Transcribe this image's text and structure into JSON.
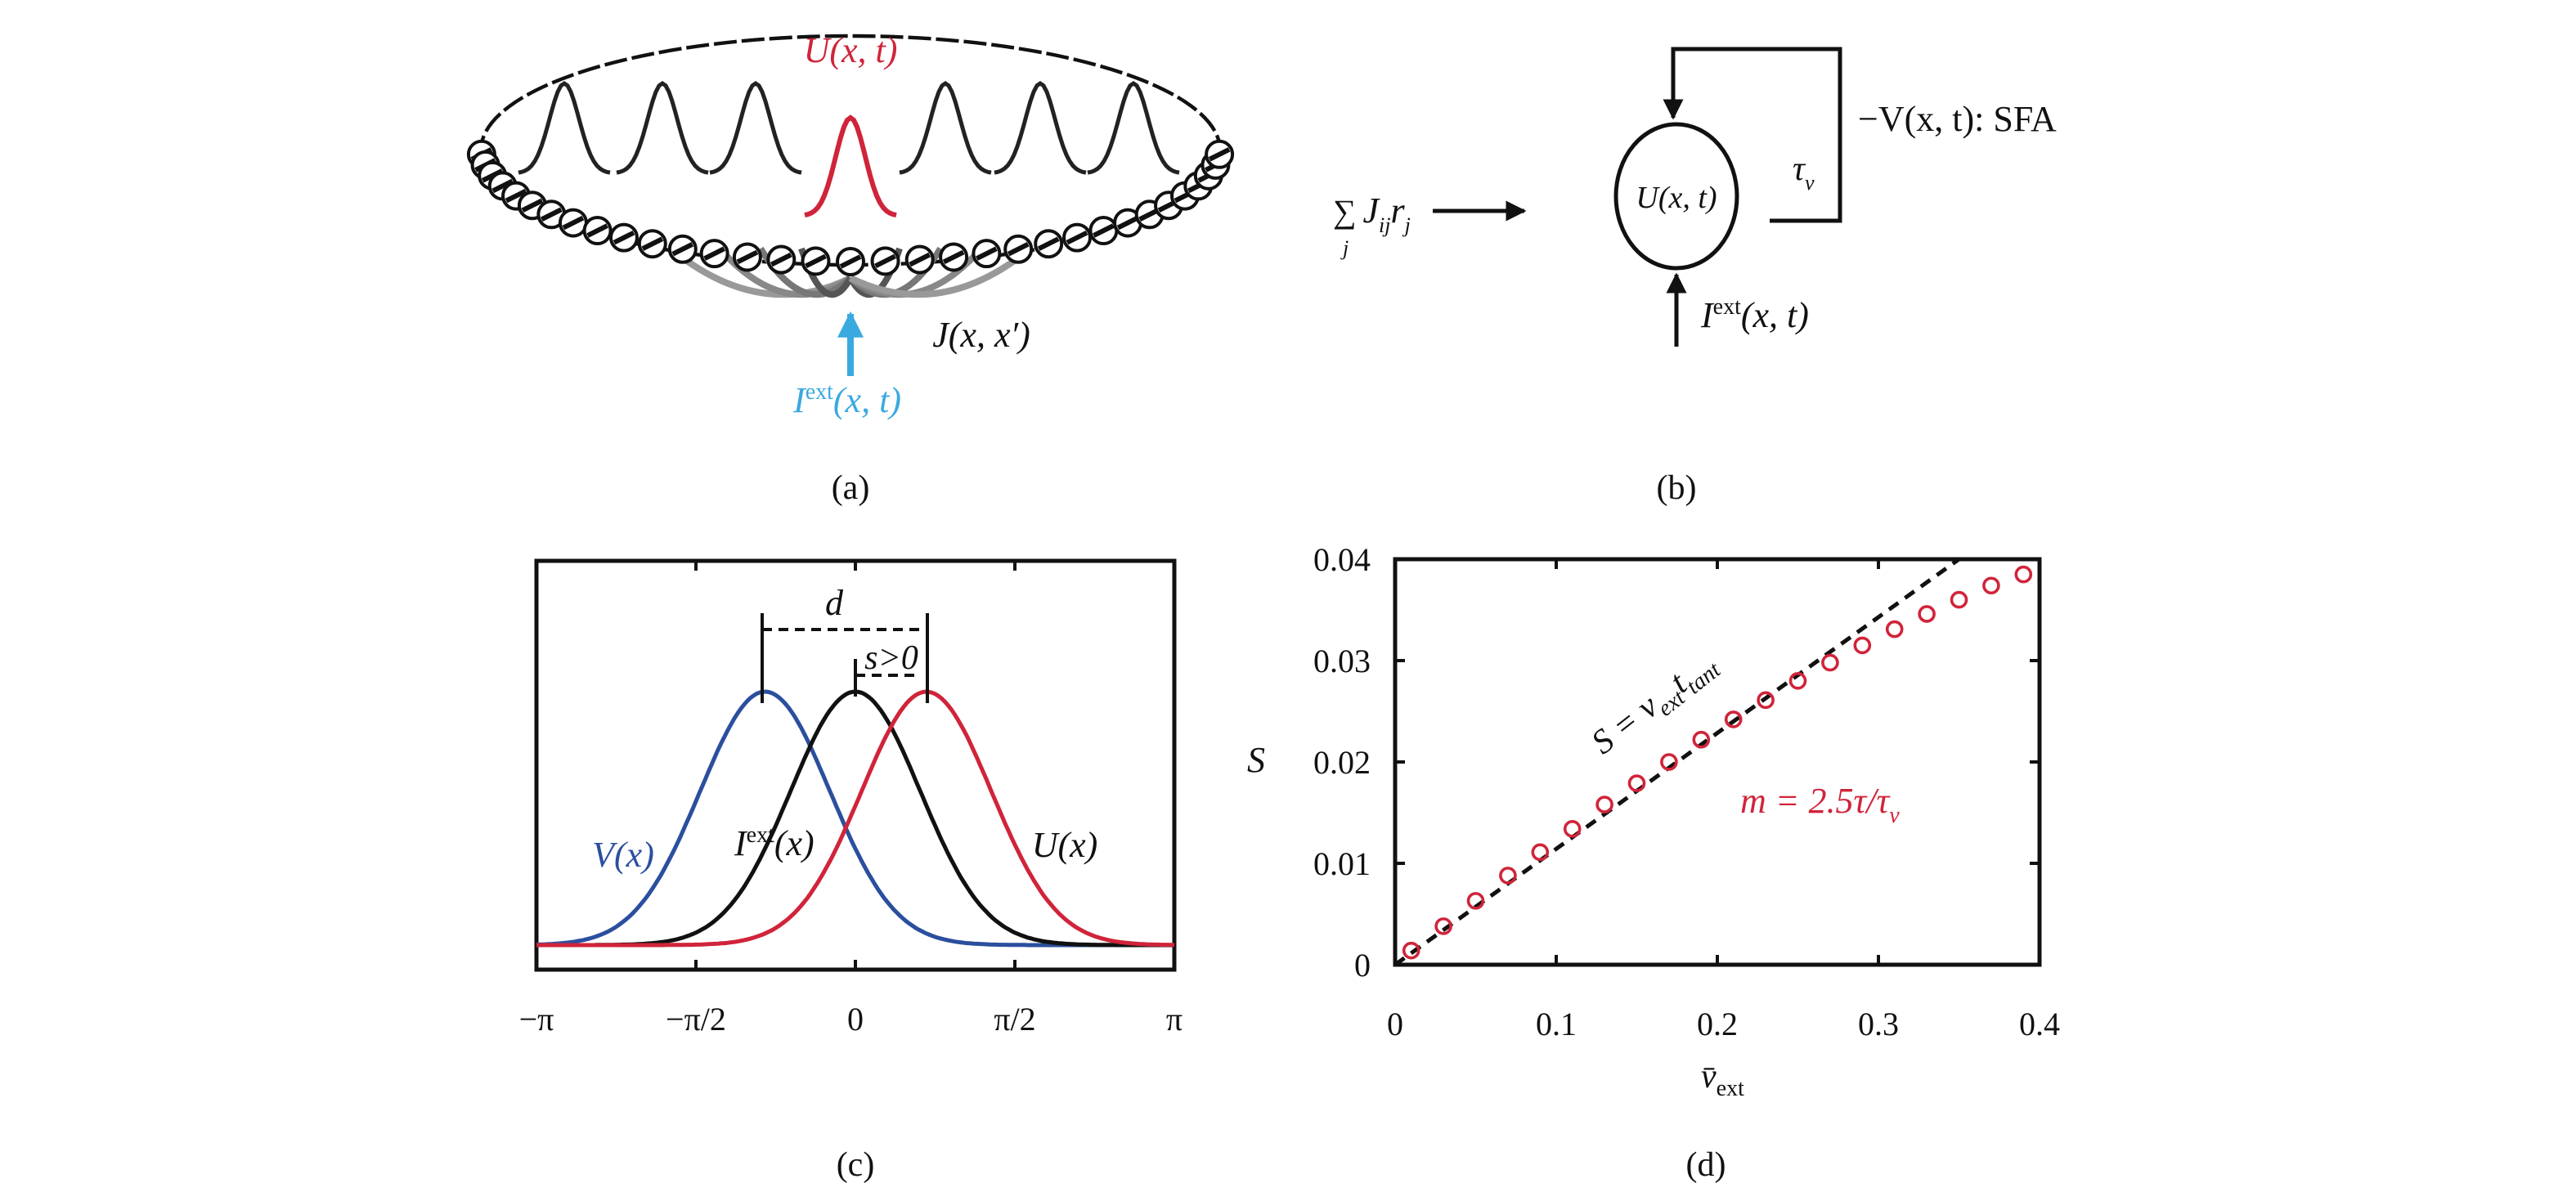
{
  "colors": {
    "red": "#d0243a",
    "blue": "#2b4f9e",
    "light_blue": "#3aa9e0",
    "black": "#111111"
  },
  "panel_a": {
    "caption": "(a)",
    "bump_label": "U(x, t)",
    "input_label_main": "I",
    "input_label_sup": "ext",
    "input_label_args": "(x, t)",
    "coupling_label": "J(x, x′)"
  },
  "panel_b": {
    "caption": "(b)",
    "neuron_label": "U(x, t)",
    "recurrent_sum": "∑",
    "recurrent_index": "j",
    "recurrent_term_J": "J",
    "recurrent_term_J_sub": "ij",
    "recurrent_term_r": "r",
    "recurrent_term_r_sub": "j",
    "tau_label": "τ",
    "tau_sub": "v",
    "feedback_label": "−V(x, t): SFA",
    "input_label_main": "I",
    "input_label_sup": "ext",
    "input_label_args": "(x, t)"
  },
  "chart_data": [
    {
      "panel": "c",
      "caption": "(c)",
      "type": "line",
      "xlim": [
        -3.14159,
        3.14159
      ],
      "x_ticks": [
        "−π",
        "−π/2",
        "0",
        "π/2",
        "π"
      ],
      "grid": false,
      "series": [
        {
          "name": "V(x)",
          "color": "#2b4f9e",
          "shape": "gaussian",
          "peak_x": -0.89,
          "sigma": 0.64
        },
        {
          "name": "I^ext(x)",
          "color": "#111111",
          "shape": "gaussian",
          "peak_x": 0.0,
          "sigma": 0.64
        },
        {
          "name": "U(x)",
          "color": "#d0243a",
          "shape": "gaussian",
          "peak_x": 0.7,
          "sigma": 0.64
        }
      ],
      "labels": {
        "V": "V(x)",
        "I_main": "I",
        "I_sup": "ext",
        "I_args": "(x)",
        "U": "U(x)",
        "d": "d",
        "s": "s>0"
      }
    },
    {
      "panel": "d",
      "caption": "(d)",
      "type": "scatter",
      "xlabel_main": "v̄",
      "xlabel_sub": "ext",
      "ylabel": "S",
      "xlim": [
        0,
        0.4
      ],
      "ylim": [
        0,
        0.04
      ],
      "x_ticks": [
        "0",
        "0.1",
        "0.2",
        "0.3",
        "0.4"
      ],
      "y_ticks": [
        "0",
        "0.01",
        "0.02",
        "0.03",
        "0.04"
      ],
      "grid": false,
      "series": [
        {
          "color": "#d0243a",
          "marker": "open-circle",
          "x": [
            0.01,
            0.03,
            0.05,
            0.07,
            0.09,
            0.11,
            0.13,
            0.15,
            0.17,
            0.19,
            0.21,
            0.23,
            0.25,
            0.27,
            0.29,
            0.31,
            0.33,
            0.35,
            0.37,
            0.39
          ],
          "y": [
            0.0014,
            0.0038,
            0.0063,
            0.0088,
            0.0111,
            0.0134,
            0.0158,
            0.0179,
            0.02,
            0.0222,
            0.0242,
            0.0261,
            0.028,
            0.0298,
            0.0315,
            0.0331,
            0.0346,
            0.036,
            0.0374,
            0.0385
          ]
        }
      ],
      "reference_line": {
        "style": "dashed",
        "color": "#111111",
        "x": [
          0,
          0.35
        ],
        "y": [
          0,
          0.04
        ]
      },
      "annotations": {
        "line_label_S": "S = ν",
        "line_label_sub1": "ext",
        "line_label_t": "t",
        "line_label_sub2": "tant",
        "param_label": "m = 2.5τ/τ",
        "param_sub": "v"
      }
    }
  ]
}
